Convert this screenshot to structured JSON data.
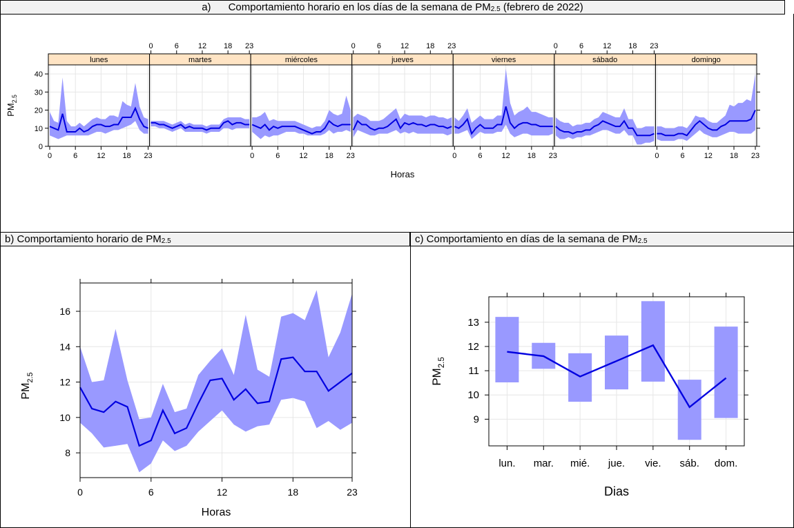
{
  "panels": {
    "a": {
      "label": "a)",
      "title_main": "Comportamiento horario en los días de la semana de PM",
      "title_sub": "2.5",
      "title_tail": " (febrero de 2022)"
    },
    "b": {
      "label": "b)",
      "title_main": "Comportamiento horario de PM",
      "title_sub": "2.5"
    },
    "c": {
      "label": "c)",
      "title_main": "Comportamiento en días de la semana de PM",
      "title_sub": "2.5"
    }
  },
  "colors": {
    "line": "#0000e0",
    "band": "#9999ff",
    "strip": "#ffe4c4",
    "grid": "#e6e6e6"
  },
  "chart_data": [
    {
      "id": "weekday-hourly",
      "type": "line",
      "facets": [
        "lunes",
        "martes",
        "miércoles",
        "jueves",
        "viernes",
        "sábado",
        "domingo"
      ],
      "x_ticks": [
        0,
        6,
        12,
        18,
        23
      ],
      "y_ticks": [
        0,
        10,
        20,
        30,
        40
      ],
      "ylim": [
        0,
        45
      ],
      "xlim": [
        0,
        23
      ],
      "xlabel": "Horas",
      "ylabel_main": "PM",
      "ylabel_sub": "2.5",
      "series": [
        {
          "facet": "lunes",
          "mean": [
            11,
            10,
            9,
            18,
            8,
            8,
            8,
            10,
            8,
            9,
            11,
            12,
            12,
            11,
            11,
            12,
            12,
            16,
            16,
            16,
            21,
            15,
            11,
            10
          ],
          "lower": [
            6,
            5,
            4,
            5,
            6,
            6,
            6,
            6,
            6,
            6,
            7,
            8,
            8,
            7,
            8,
            9,
            9,
            10,
            11,
            12,
            14,
            9,
            7,
            7
          ],
          "upper": [
            19,
            14,
            13,
            38,
            14,
            11,
            11,
            13,
            11,
            13,
            15,
            16,
            15,
            15,
            17,
            17,
            16,
            25,
            23,
            22,
            35,
            22,
            16,
            15
          ]
        },
        {
          "facet": "martes",
          "mean": [
            13,
            13,
            12,
            12,
            11,
            10,
            11,
            12,
            10,
            11,
            10,
            10,
            10,
            9,
            10,
            10,
            10,
            13,
            14,
            12,
            13,
            13,
            12,
            12
          ],
          "lower": [
            11,
            11,
            10,
            10,
            9,
            8,
            9,
            10,
            8,
            8,
            8,
            8,
            8,
            7,
            8,
            8,
            8,
            10,
            10,
            9,
            10,
            10,
            10,
            10
          ],
          "upper": [
            14,
            14,
            14,
            14,
            13,
            12,
            13,
            14,
            12,
            13,
            12,
            12,
            12,
            11,
            12,
            12,
            12,
            15,
            16,
            16,
            16,
            16,
            15,
            15
          ]
        },
        {
          "facet": "miércoles",
          "mean": [
            12,
            11,
            10,
            12,
            9,
            11,
            10,
            11,
            11,
            11,
            11,
            10,
            9,
            8,
            7,
            8,
            8,
            10,
            14,
            12,
            11,
            12,
            12,
            12
          ],
          "lower": [
            8,
            6,
            4,
            6,
            5,
            6,
            6,
            7,
            8,
            8,
            8,
            7,
            7,
            6,
            6,
            6,
            6,
            7,
            9,
            7,
            8,
            8,
            9,
            8
          ],
          "upper": [
            16,
            16,
            17,
            19,
            14,
            15,
            14,
            14,
            14,
            14,
            14,
            13,
            12,
            11,
            10,
            11,
            11,
            14,
            20,
            18,
            17,
            18,
            28,
            20
          ]
        },
        {
          "facet": "jueves",
          "mean": [
            9,
            14,
            12,
            12,
            10,
            9,
            10,
            10,
            11,
            13,
            15,
            10,
            13,
            12,
            13,
            12,
            12,
            11,
            12,
            12,
            11,
            11,
            10,
            11
          ],
          "lower": [
            5,
            9,
            8,
            7,
            6,
            6,
            7,
            7,
            7,
            8,
            9,
            7,
            8,
            7,
            8,
            7,
            7,
            7,
            7,
            7,
            7,
            7,
            6,
            7
          ],
          "upper": [
            16,
            18,
            17,
            16,
            14,
            14,
            14,
            15,
            17,
            19,
            21,
            15,
            18,
            17,
            17,
            17,
            17,
            16,
            17,
            17,
            16,
            16,
            15,
            16
          ]
        },
        {
          "facet": "viernes",
          "mean": [
            11,
            10,
            12,
            15,
            7,
            10,
            12,
            10,
            10,
            10,
            12,
            12,
            22,
            13,
            10,
            12,
            13,
            13,
            12,
            12,
            11,
            11,
            11,
            11
          ],
          "lower": [
            7,
            7,
            8,
            9,
            4,
            6,
            8,
            7,
            7,
            7,
            8,
            8,
            12,
            7,
            5,
            6,
            7,
            7,
            6,
            6,
            6,
            6,
            6,
            7
          ],
          "upper": [
            16,
            14,
            17,
            21,
            13,
            15,
            17,
            15,
            15,
            15,
            17,
            17,
            43,
            24,
            17,
            19,
            20,
            22,
            19,
            19,
            18,
            17,
            16,
            16
          ]
        },
        {
          "facet": "sábado",
          "mean": [
            11,
            9,
            8,
            8,
            7,
            8,
            8,
            9,
            9,
            11,
            12,
            14,
            13,
            12,
            11,
            11,
            14,
            10,
            10,
            6,
            6,
            6,
            6,
            7
          ],
          "lower": [
            6,
            4,
            4,
            5,
            4,
            5,
            5,
            6,
            6,
            7,
            8,
            9,
            9,
            8,
            7,
            7,
            9,
            6,
            6,
            1,
            1,
            2,
            2,
            3
          ],
          "upper": [
            16,
            14,
            13,
            13,
            11,
            12,
            12,
            13,
            13,
            15,
            16,
            19,
            18,
            17,
            16,
            16,
            21,
            15,
            15,
            10,
            10,
            11,
            11,
            11
          ]
        },
        {
          "facet": "domingo",
          "mean": [
            7,
            7,
            6,
            6,
            6,
            7,
            7,
            6,
            9,
            12,
            14,
            12,
            10,
            9,
            9,
            11,
            12,
            14,
            14,
            14,
            14,
            14,
            15,
            20
          ],
          "lower": [
            4,
            3,
            3,
            3,
            3,
            4,
            4,
            3,
            5,
            7,
            9,
            7,
            6,
            5,
            5,
            6,
            7,
            8,
            8,
            7,
            7,
            7,
            7,
            9
          ],
          "upper": [
            11,
            11,
            10,
            10,
            10,
            11,
            11,
            10,
            13,
            17,
            16,
            16,
            14,
            13,
            13,
            15,
            17,
            23,
            22,
            24,
            24,
            26,
            25,
            40
          ]
        }
      ]
    },
    {
      "id": "hourly",
      "type": "line",
      "x": [
        0,
        1,
        2,
        3,
        4,
        5,
        6,
        7,
        8,
        9,
        10,
        11,
        12,
        13,
        14,
        15,
        16,
        17,
        18,
        19,
        20,
        21,
        22,
        23
      ],
      "mean": [
        11.7,
        10.5,
        10.3,
        10.9,
        10.6,
        8.4,
        8.7,
        10.4,
        9.1,
        9.4,
        10.8,
        12.1,
        12.2,
        11.0,
        11.6,
        10.8,
        10.9,
        13.3,
        13.4,
        12.6,
        12.6,
        11.5,
        12.0,
        12.5
      ],
      "lower": [
        9.7,
        9.1,
        8.3,
        8.4,
        8.5,
        6.9,
        7.4,
        8.7,
        8.1,
        8.4,
        9.2,
        9.8,
        10.4,
        9.6,
        9.2,
        9.5,
        9.6,
        11.0,
        11.1,
        10.9,
        9.4,
        9.8,
        9.3,
        9.7
      ],
      "upper": [
        14.0,
        12.0,
        12.1,
        15.0,
        12.1,
        9.9,
        10.0,
        11.9,
        10.3,
        10.5,
        12.4,
        13.2,
        13.9,
        12.4,
        15.8,
        12.7,
        12.3,
        15.7,
        15.9,
        15.5,
        17.2,
        13.4,
        14.8,
        17.0
      ],
      "x_ticks": [
        0,
        6,
        12,
        18,
        23
      ],
      "y_ticks": [
        8,
        10,
        12,
        14,
        16
      ],
      "xlim": [
        0,
        23
      ],
      "ylim": [
        6.6,
        17.6
      ],
      "xlabel": "Horas",
      "ylabel_main": "PM",
      "ylabel_sub": "2.5"
    },
    {
      "id": "weekday",
      "type": "line",
      "categories": [
        "lun.",
        "mar.",
        "mié.",
        "jue.",
        "vie.",
        "sáb.",
        "dom."
      ],
      "mean": [
        11.78,
        11.6,
        10.76,
        11.4,
        12.05,
        9.5,
        10.7
      ],
      "lower": [
        10.52,
        11.08,
        9.72,
        10.23,
        10.55,
        8.15,
        9.05
      ],
      "upper": [
        13.22,
        12.15,
        11.72,
        12.45,
        13.87,
        10.63,
        12.82
      ],
      "y_ticks": [
        9,
        10,
        11,
        12,
        13
      ],
      "ylim": [
        7.9,
        14.05
      ],
      "xlabel": "Dias",
      "ylabel_main": "PM",
      "ylabel_sub": "2.5"
    }
  ]
}
